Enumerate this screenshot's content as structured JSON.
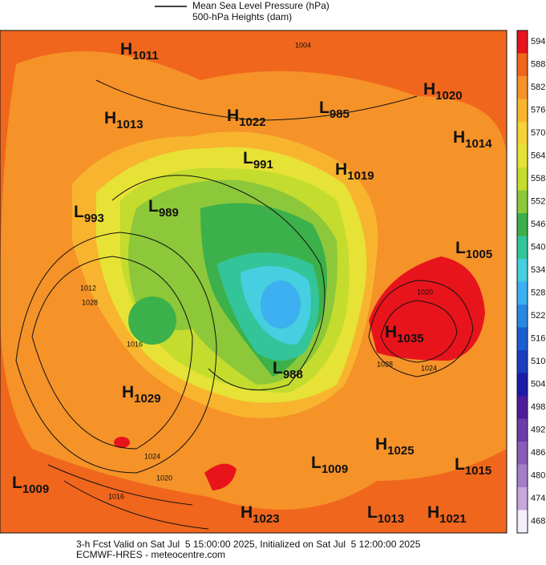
{
  "legend": {
    "line_label": "Mean Sea Level Pressure (hPa)",
    "fill_label": "500-hPa Heights (dam)"
  },
  "colorbar": {
    "levels": [
      594,
      588,
      582,
      576,
      570,
      564,
      558,
      552,
      546,
      540,
      534,
      528,
      522,
      516,
      510,
      504,
      498,
      492,
      486,
      480,
      474,
      468
    ],
    "colors": [
      "#e8141c",
      "#f0661c",
      "#f59228",
      "#f8b42e",
      "#f5d23a",
      "#e6e236",
      "#c4dc2e",
      "#8cc83a",
      "#3cb04a",
      "#34c49a",
      "#46cfe0",
      "#3cb0f0",
      "#2888e0",
      "#1c5ed0",
      "#1a3ec0",
      "#1c1ca8",
      "#4c1c9c",
      "#6c3caa",
      "#8a5cb8",
      "#a47ec8",
      "#c6a8dc",
      "#f4eefa"
    ]
  },
  "centers": [
    {
      "type": "H",
      "value": 1011
    },
    {
      "type": "H",
      "value": 1013
    },
    {
      "type": "H",
      "value": 1022
    },
    {
      "type": "L",
      "value": 985
    },
    {
      "type": "H",
      "value": 1020
    },
    {
      "type": "H",
      "value": 1014
    },
    {
      "type": "L",
      "value": 991
    },
    {
      "type": "H",
      "value": 1019
    },
    {
      "type": "L",
      "value": 993
    },
    {
      "type": "L",
      "value": 989
    },
    {
      "type": "L",
      "value": 1005
    },
    {
      "type": "H",
      "value": 1035
    },
    {
      "type": "L",
      "value": 988
    },
    {
      "type": "H",
      "value": 1029
    },
    {
      "type": "H",
      "value": 1025
    },
    {
      "type": "L",
      "value": 1009
    },
    {
      "type": "L",
      "value": 1015
    },
    {
      "type": "L",
      "value": 1009
    },
    {
      "type": "H",
      "value": 1023
    },
    {
      "type": "L",
      "value": 1013
    },
    {
      "type": "H",
      "value": 1021
    }
  ],
  "isobar_labels": [
    1004,
    1028,
    1012,
    1016,
    1024,
    1020,
    1016,
    1020,
    1024,
    1028
  ],
  "footer": {
    "valid": "3-h Fcst Valid on Sat Jul  5 15:00:00 2025, Initialized on Sat Jul  5 12:00:00 2025",
    "source": "ECMWF-HRES - meteocentre.com"
  }
}
